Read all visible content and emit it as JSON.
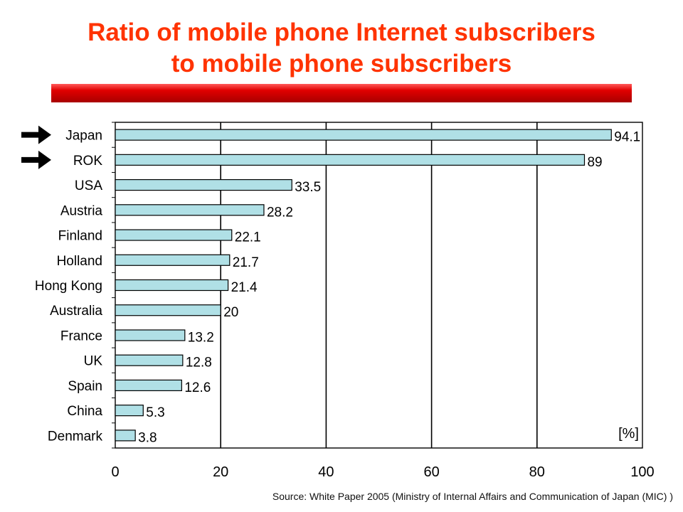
{
  "title_line1": "Ratio of mobile phone Internet subscribers",
  "title_line2": "to mobile phone subscribers",
  "source": "Source: White Paper 2005 (Ministry of Internal Affairs and Communication of Japan (MIC) )",
  "colors": {
    "title": "#ff3300",
    "bar_fill": "#b0e0e6",
    "bar_stroke": "#000000",
    "title_bar": "#d00000"
  },
  "chart_data": {
    "type": "bar",
    "orientation": "horizontal",
    "categories": [
      "Japan",
      "ROK",
      "USA",
      "Austria",
      "Finland",
      "Holland",
      "Hong Kong",
      "Australia",
      "France",
      "UK",
      "Spain",
      "China",
      "Denmark"
    ],
    "values": [
      94.1,
      89,
      33.5,
      28.2,
      22.1,
      21.7,
      21.4,
      20,
      13.2,
      12.8,
      12.6,
      5.3,
      3.8
    ],
    "value_labels": [
      "94.1",
      "89",
      "33.5",
      "28.2",
      "22.1",
      "21.7",
      "21.4",
      "20",
      "13.2",
      "12.8",
      "12.6",
      "5.3",
      "3.8"
    ],
    "highlighted": [
      "Japan",
      "ROK"
    ],
    "xlim": [
      0,
      100
    ],
    "xticks": [
      0,
      20,
      40,
      60,
      80,
      100
    ],
    "unit_label": "[%]",
    "grid": "vertical"
  }
}
